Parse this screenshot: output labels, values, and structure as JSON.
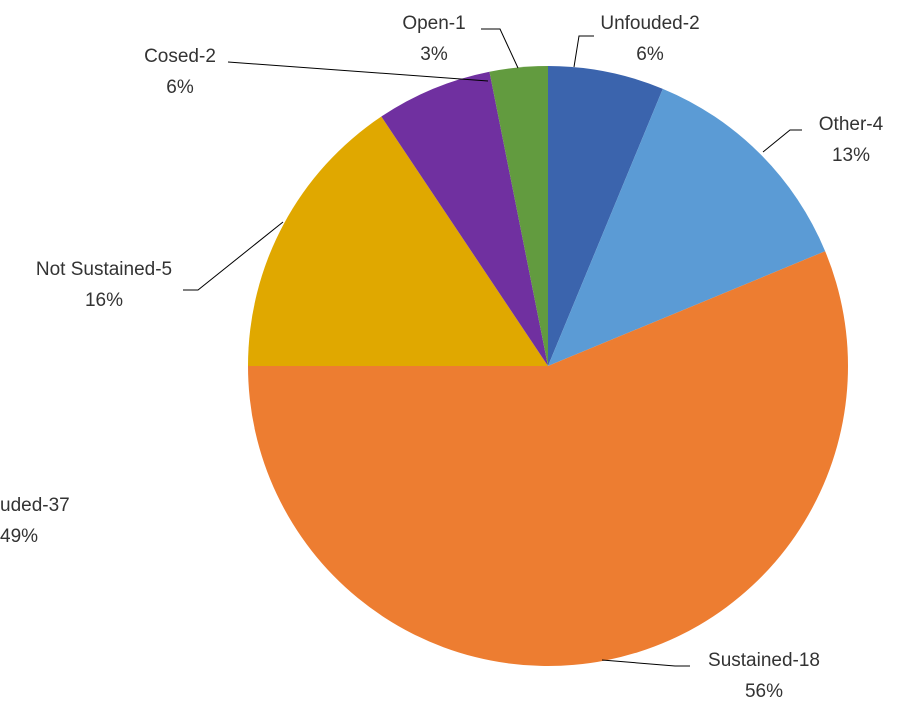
{
  "chart_data": {
    "type": "pie",
    "slices": [
      {
        "name": "Unfouded-2",
        "value": 2,
        "percent": "6%",
        "color": "#3B64AD"
      },
      {
        "name": "Other-4",
        "value": 4,
        "percent": "13%",
        "color": "#5B9BD5"
      },
      {
        "name": "Sustained-18",
        "value": 18,
        "percent": "56%",
        "color": "#ED7D31"
      },
      {
        "name": "Not Sustained-5",
        "value": 5,
        "percent": "16%",
        "color": "#E0A800"
      },
      {
        "name": "Cosed-2",
        "value": 2,
        "percent": "6%",
        "color": "#7030A0"
      },
      {
        "name": "Open-1",
        "value": 1,
        "percent": "3%",
        "color": "#629B3F"
      }
    ],
    "partial_label": {
      "name": "uded-37",
      "percent": "49%"
    },
    "start_angle_deg": 0,
    "direction": "clockwise"
  }
}
